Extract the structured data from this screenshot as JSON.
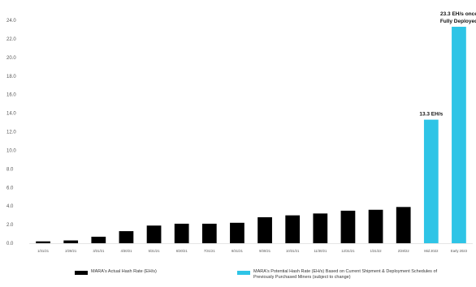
{
  "chart_data": {
    "type": "bar",
    "categories": [
      "1/31/21",
      "2/28/21",
      "3/31/21",
      "4/30/21",
      "5/31/21",
      "6/30/21",
      "7/31/21",
      "8/31/21",
      "9/30/21",
      "10/31/21",
      "11/30/21",
      "12/31/21",
      "1/31/22",
      "2/28/22",
      "Mid 2022",
      "Early 2023"
    ],
    "values": [
      0.2,
      0.3,
      0.7,
      1.3,
      1.9,
      2.1,
      2.1,
      2.2,
      2.8,
      3.0,
      3.2,
      3.5,
      3.6,
      3.9,
      13.3,
      23.3
    ],
    "bar_type": [
      "actual",
      "actual",
      "actual",
      "actual",
      "actual",
      "actual",
      "actual",
      "actual",
      "actual",
      "actual",
      "actual",
      "actual",
      "actual",
      "actual",
      "potential",
      "potential"
    ],
    "ylim": [
      0,
      24
    ],
    "yticks": [
      "0.0",
      "2.0",
      "4.0",
      "6.0",
      "8.0",
      "10.0",
      "12.0",
      "14.0",
      "16.0",
      "18.0",
      "20.0",
      "22.0",
      "24.0"
    ],
    "annotations": [
      {
        "category_index": 14,
        "lines": [
          "13.3 EH/s"
        ]
      },
      {
        "category_index": 15,
        "lines": [
          "23.3 EH/s once",
          "Fully Deployed"
        ]
      }
    ],
    "grid": false,
    "legend_position": "bottom",
    "legend": [
      {
        "key": "actual",
        "label": "MARA's Actual Hash Rate (EH/s)",
        "color": "#000000"
      },
      {
        "key": "potential",
        "label": "MARA's Potential Hash Rate (EH/s) Based on Current Shipment & Deployment Schedules of Previously Purchased Miners (subject to change)",
        "color": "#2ec4e6"
      }
    ],
    "colors": {
      "actual": "#000000",
      "potential": "#2ec4e6",
      "axis_text": "#555555",
      "annotation_text": "#111111"
    }
  }
}
